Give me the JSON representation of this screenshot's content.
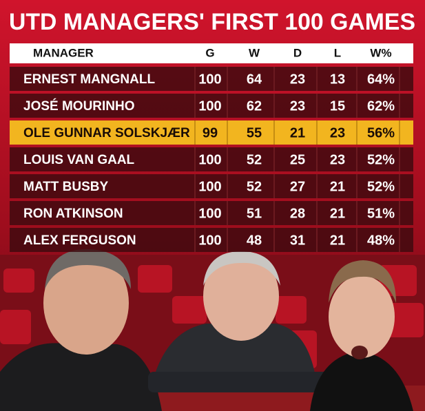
{
  "header": {
    "title": "UTD MANAGERS' FIRST 100 GAMES"
  },
  "table": {
    "columns": [
      "MANAGER",
      "G",
      "W",
      "D",
      "L",
      "W%"
    ],
    "rows": [
      [
        "ERNEST MANGNALL",
        100,
        64,
        23,
        13,
        "64%"
      ],
      [
        "JOSÉ MOURINHO",
        100,
        62,
        23,
        15,
        "62%"
      ],
      [
        "OLE GUNNAR SOLSKJÆR",
        99,
        55,
        21,
        23,
        "56%"
      ],
      [
        "LOUIS VAN GAAL",
        100,
        52,
        25,
        23,
        "52%"
      ],
      [
        "MATT BUSBY",
        100,
        52,
        27,
        21,
        "52%"
      ],
      [
        "RON ATKINSON",
        100,
        51,
        28,
        21,
        "51%"
      ],
      [
        "ALEX FERGUSON",
        100,
        48,
        31,
        21,
        "48%"
      ]
    ]
  }
}
